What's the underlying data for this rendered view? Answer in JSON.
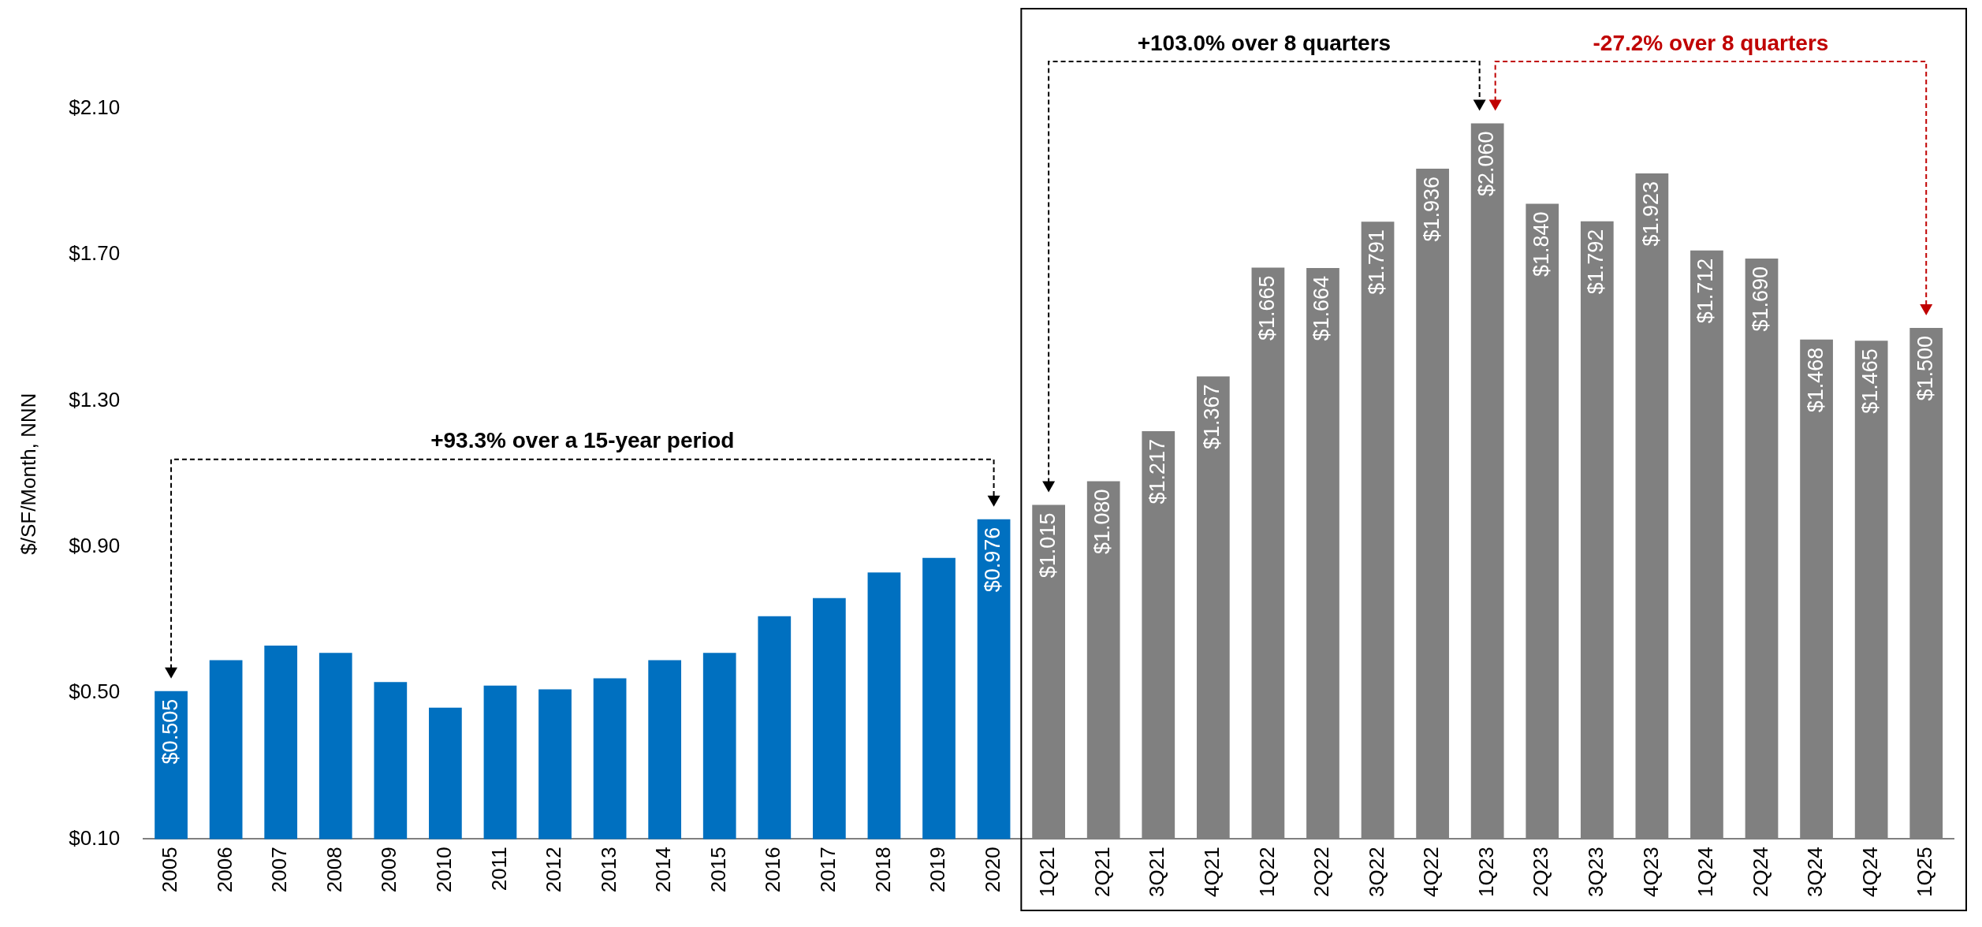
{
  "chart_data": {
    "type": "bar",
    "ylabel": "$/SF/Month, NNN",
    "categories": [
      "2005",
      "2006",
      "2007",
      "2008",
      "2009",
      "2010",
      "2011",
      "2012",
      "2013",
      "2014",
      "2015",
      "2016",
      "2017",
      "2018",
      "2019",
      "2020",
      "1Q21",
      "2Q21",
      "3Q21",
      "4Q21",
      "1Q22",
      "2Q22",
      "3Q22",
      "4Q22",
      "1Q23",
      "2Q23",
      "3Q23",
      "4Q23",
      "1Q24",
      "2Q24",
      "3Q24",
      "4Q24",
      "1Q25"
    ],
    "values": [
      0.505,
      0.59,
      0.63,
      0.61,
      0.53,
      0.46,
      0.52,
      0.51,
      0.54,
      0.59,
      0.61,
      0.71,
      0.76,
      0.83,
      0.87,
      0.976,
      1.015,
      1.08,
      1.217,
      1.367,
      1.665,
      1.664,
      1.791,
      1.936,
      2.06,
      1.84,
      1.792,
      1.923,
      1.712,
      1.69,
      1.468,
      1.465,
      1.5
    ],
    "colors": [
      "#0070c0",
      "#0070c0",
      "#0070c0",
      "#0070c0",
      "#0070c0",
      "#0070c0",
      "#0070c0",
      "#0070c0",
      "#0070c0",
      "#0070c0",
      "#0070c0",
      "#0070c0",
      "#0070c0",
      "#0070c0",
      "#0070c0",
      "#0070c0",
      "#808080",
      "#808080",
      "#808080",
      "#808080",
      "#808080",
      "#808080",
      "#808080",
      "#808080",
      "#808080",
      "#808080",
      "#808080",
      "#808080",
      "#808080",
      "#808080",
      "#808080",
      "#808080",
      "#808080"
    ],
    "value_labels": [
      "$0.505",
      null,
      null,
      null,
      null,
      null,
      null,
      null,
      null,
      null,
      null,
      null,
      null,
      null,
      null,
      "$0.976",
      "$1.015",
      "$1.080",
      "$1.217",
      "$1.367",
      "$1.665",
      "$1.664",
      "$1.791",
      "$1.936",
      "$2.060",
      "$1.840",
      "$1.792",
      "$1.923",
      "$1.712",
      "$1.690",
      "$1.468",
      "$1.465",
      "$1.500"
    ],
    "ylim": [
      0.1,
      2.1
    ],
    "yticks": [
      {
        "value": 0.1,
        "label": "$0.10"
      },
      {
        "value": 0.5,
        "label": "$0.50"
      },
      {
        "value": 0.9,
        "label": "$0.90"
      },
      {
        "value": 1.3,
        "label": "$1.30"
      },
      {
        "value": 1.7,
        "label": "$1.70"
      },
      {
        "value": 2.1,
        "label": "$2.10"
      }
    ],
    "grid": false,
    "legend": false,
    "annotations": [
      "+93.3% over a 15-year period",
      "+103.0% over 8 quarters",
      "-27.2% over 8 quarters"
    ]
  }
}
